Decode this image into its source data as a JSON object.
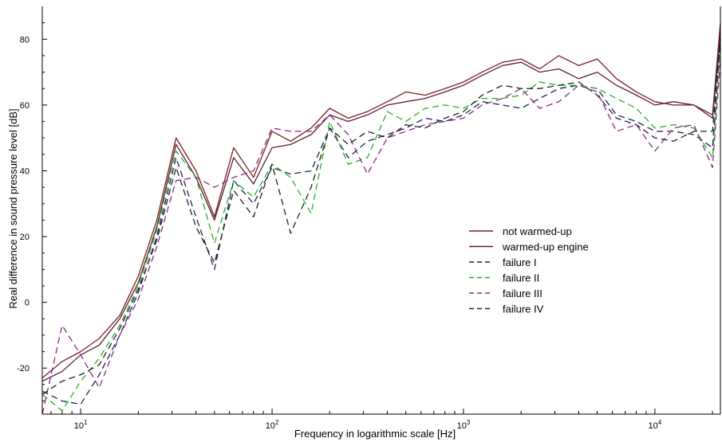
{
  "chart_data": {
    "type": "line",
    "title": "",
    "xlabel": "Frequency in logarithmic scale [Hz]",
    "ylabel": "Real difference in sound pressure level [dB]",
    "xscale": "log",
    "xlim": [
      6.3,
      22000
    ],
    "ylim": [
      -34,
      90
    ],
    "grid": false,
    "legend_position": "center-right",
    "x_ticks": [
      {
        "base": "10",
        "exp": "1",
        "value": 10
      },
      {
        "base": "10",
        "exp": "2",
        "value": 100
      },
      {
        "base": "10",
        "exp": "3",
        "value": 1000
      },
      {
        "base": "10",
        "exp": "4",
        "value": 10000
      }
    ],
    "y_ticks": [
      "-20",
      "0",
      "20",
      "40",
      "60",
      "80"
    ],
    "y_tick_values": [
      -20,
      0,
      20,
      40,
      60,
      80
    ],
    "x": [
      6.3,
      8,
      10,
      12.5,
      16,
      20,
      25,
      31.5,
      40,
      50,
      63,
      80,
      100,
      125,
      160,
      200,
      250,
      315,
      400,
      500,
      630,
      800,
      1000,
      1250,
      1600,
      2000,
      2500,
      3150,
      4000,
      5000,
      6300,
      8000,
      10000,
      12500,
      16000,
      20000,
      22000
    ],
    "series": [
      {
        "name": "not warmed-up",
        "color": "#7a1f1f",
        "dash": "",
        "values": [
          -23,
          -18,
          -15,
          -11,
          -4,
          8,
          25,
          50,
          40,
          26,
          47,
          38,
          52,
          49,
          53,
          59,
          56,
          58,
          61,
          64,
          63,
          65,
          67,
          70,
          73,
          74,
          71,
          75,
          72,
          74,
          68,
          64,
          61,
          60,
          60,
          57,
          85
        ]
      },
      {
        "name": "warmed-up engine",
        "color": "#5a1e36",
        "dash": "",
        "values": [
          -24,
          -21,
          -16,
          -13,
          -5,
          6,
          23,
          48,
          38,
          25,
          44,
          36,
          47,
          48,
          51,
          57,
          55,
          57,
          60,
          61,
          62,
          64,
          66,
          69,
          72,
          73,
          70,
          71,
          68,
          70,
          66,
          63,
          60,
          61,
          60,
          56,
          82
        ]
      },
      {
        "name": "failure I",
        "color": "#1b2454",
        "dash": "8,5",
        "values": [
          -27,
          -30,
          -31,
          -22,
          -10,
          3,
          20,
          44,
          26,
          10,
          37,
          30,
          41,
          39,
          40,
          53,
          44,
          49,
          51,
          53,
          56,
          55,
          57,
          61,
          60,
          59,
          62,
          65,
          66,
          65,
          57,
          55,
          52,
          52,
          51,
          47,
          80
        ]
      },
      {
        "name": "failure II",
        "color": "#24b024",
        "dash": "8,5",
        "values": [
          -28,
          -33,
          -24,
          -17,
          -7,
          5,
          22,
          46,
          38,
          18,
          37,
          32,
          42,
          38,
          27,
          55,
          42,
          44,
          58,
          55,
          59,
          60,
          59,
          62,
          62,
          63,
          67,
          66,
          66,
          65,
          62,
          59,
          53,
          54,
          53,
          44,
          78
        ]
      },
      {
        "name": "failure III",
        "color": "#8a2a8a",
        "dash": "8,5",
        "values": [
          -34,
          -7,
          -16,
          -26,
          -10,
          1,
          17,
          37,
          38,
          35,
          38,
          40,
          53,
          52,
          52,
          57,
          51,
          39,
          50,
          52,
          54,
          55,
          56,
          60,
          62,
          65,
          59,
          61,
          66,
          64,
          52,
          54,
          46,
          53,
          54,
          41,
          74
        ]
      },
      {
        "name": "failure IV",
        "color": "#222222",
        "dash": "8,5",
        "values": [
          -28,
          -24,
          -22,
          -19,
          -8,
          4,
          19,
          41,
          23,
          12,
          34,
          26,
          42,
          21,
          35,
          53,
          48,
          52,
          50,
          54,
          53,
          56,
          58,
          63,
          66,
          65,
          65,
          66,
          67,
          63,
          56,
          54,
          50,
          49,
          52,
          52,
          80
        ]
      }
    ]
  }
}
